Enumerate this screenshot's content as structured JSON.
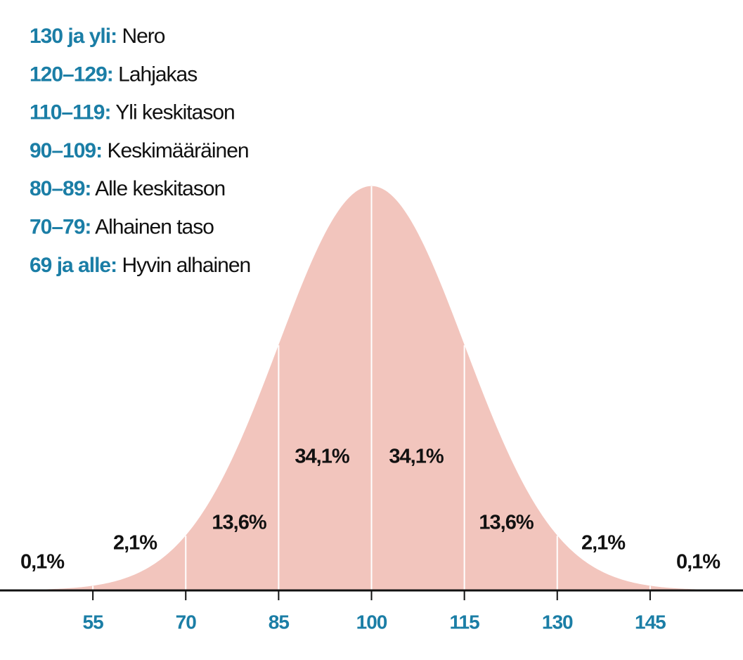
{
  "chart_data": {
    "type": "normal-distribution",
    "color": "#f2c5bd",
    "xlim": [
      40,
      160
    ],
    "xticks": [
      55,
      70,
      85,
      100,
      115,
      130,
      145
    ],
    "values": [
      0.1,
      2.1,
      13.6,
      34.1,
      34.1,
      13.6,
      2.1,
      0.1
    ],
    "value_labels": [
      "0,1%",
      "2,1%",
      "13,6%",
      "34,1%",
      "34,1%",
      "13,6%",
      "2,1%",
      "0,1%"
    ],
    "legend": [
      {
        "range": "130 ja yli:",
        "label": "Nero"
      },
      {
        "range": "120–129:",
        "label": "Lahjakas"
      },
      {
        "range": "110–119:",
        "label": "Yli keskitason"
      },
      {
        "range": "90–109:",
        "label": "Keskimääräinen"
      },
      {
        "range": "80–89:",
        "label": "Alle keskitason"
      },
      {
        "range": "70–79:",
        "label": "Alhainen taso"
      },
      {
        "range": "69 ja alle:",
        "label": "Hyvin alhainen"
      }
    ]
  }
}
